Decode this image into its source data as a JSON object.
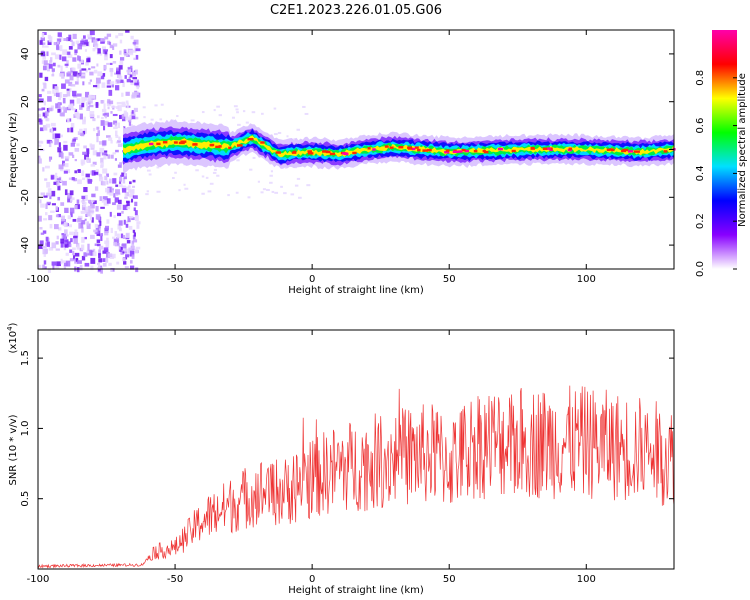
{
  "title": "C2E1.2023.226.01.05.G06",
  "chart_data": [
    {
      "type": "heatmap",
      "title": "C2E1.2023.226.01.05.G06",
      "xlabel": "Height of straight line (km)",
      "ylabel": "Frequency (Hz)",
      "xlim": [
        -100,
        132
      ],
      "ylim": [
        -50,
        50
      ],
      "xticks": [
        "-100",
        "-50",
        "0",
        "50",
        "100"
      ],
      "yticks": [
        "-40",
        "-20",
        "0",
        "20",
        "40"
      ],
      "colorbar": {
        "label": "Normalized spectral amplitude",
        "range": [
          0,
          1
        ],
        "ticks": [
          "0.0",
          "0.2",
          "0.4",
          "0.6",
          "0.8"
        ],
        "colormap": [
          "#ffffff",
          "#8800ff",
          "#0000ff",
          "#00e0ff",
          "#00ff00",
          "#ffff00",
          "#ff0000",
          "#ff00aa"
        ]
      },
      "ridge": [
        {
          "x": -68,
          "f": 0
        },
        {
          "x": -60,
          "f": 2
        },
        {
          "x": -50,
          "f": 3
        },
        {
          "x": -40,
          "f": 2
        },
        {
          "x": -30,
          "f": 1
        },
        {
          "x": -22,
          "f": 5
        },
        {
          "x": -18,
          "f": 2
        },
        {
          "x": -12,
          "f": -2
        },
        {
          "x": 0,
          "f": -1
        },
        {
          "x": 10,
          "f": -2
        },
        {
          "x": 20,
          "f": 0
        },
        {
          "x": 30,
          "f": 1
        },
        {
          "x": 50,
          "f": -1
        },
        {
          "x": 80,
          "f": 0
        },
        {
          "x": 100,
          "f": 0
        },
        {
          "x": 120,
          "f": -1
        },
        {
          "x": 132,
          "f": 0
        }
      ],
      "grid": false
    },
    {
      "type": "line",
      "xlabel": "Height of straight line (km)",
      "ylabel": "SNR (10 * v/v)",
      "yscale_label": "(x10",
      "yscale_exp": "4",
      "yscale_close": ")",
      "xlim": [
        -100,
        132
      ],
      "ylim": [
        0,
        1.7
      ],
      "xticks": [
        "-100",
        "-50",
        "0",
        "50",
        "100"
      ],
      "yticks": [
        "0.5",
        "1.0",
        "1.5"
      ],
      "series": [
        {
          "color": "#ee3333",
          "envelope": [
            {
              "x": -100,
              "y": 0.02
            },
            {
              "x": -62,
              "y": 0.03
            },
            {
              "x": -58,
              "y": 0.12
            },
            {
              "x": -50,
              "y": 0.15
            },
            {
              "x": -40,
              "y": 0.35
            },
            {
              "x": -30,
              "y": 0.45
            },
            {
              "x": -20,
              "y": 0.55
            },
            {
              "x": -10,
              "y": 0.55
            },
            {
              "x": 0,
              "y": 0.65
            },
            {
              "x": 10,
              "y": 0.72
            },
            {
              "x": 20,
              "y": 0.75
            },
            {
              "x": 30,
              "y": 0.8
            },
            {
              "x": 45,
              "y": 0.82
            },
            {
              "x": 50,
              "y": 0.75
            },
            {
              "x": 60,
              "y": 0.9
            },
            {
              "x": 80,
              "y": 0.9
            },
            {
              "x": 100,
              "y": 0.9
            },
            {
              "x": 120,
              "y": 0.85
            },
            {
              "x": 132,
              "y": 0.8
            }
          ]
        }
      ],
      "grid": false
    }
  ]
}
